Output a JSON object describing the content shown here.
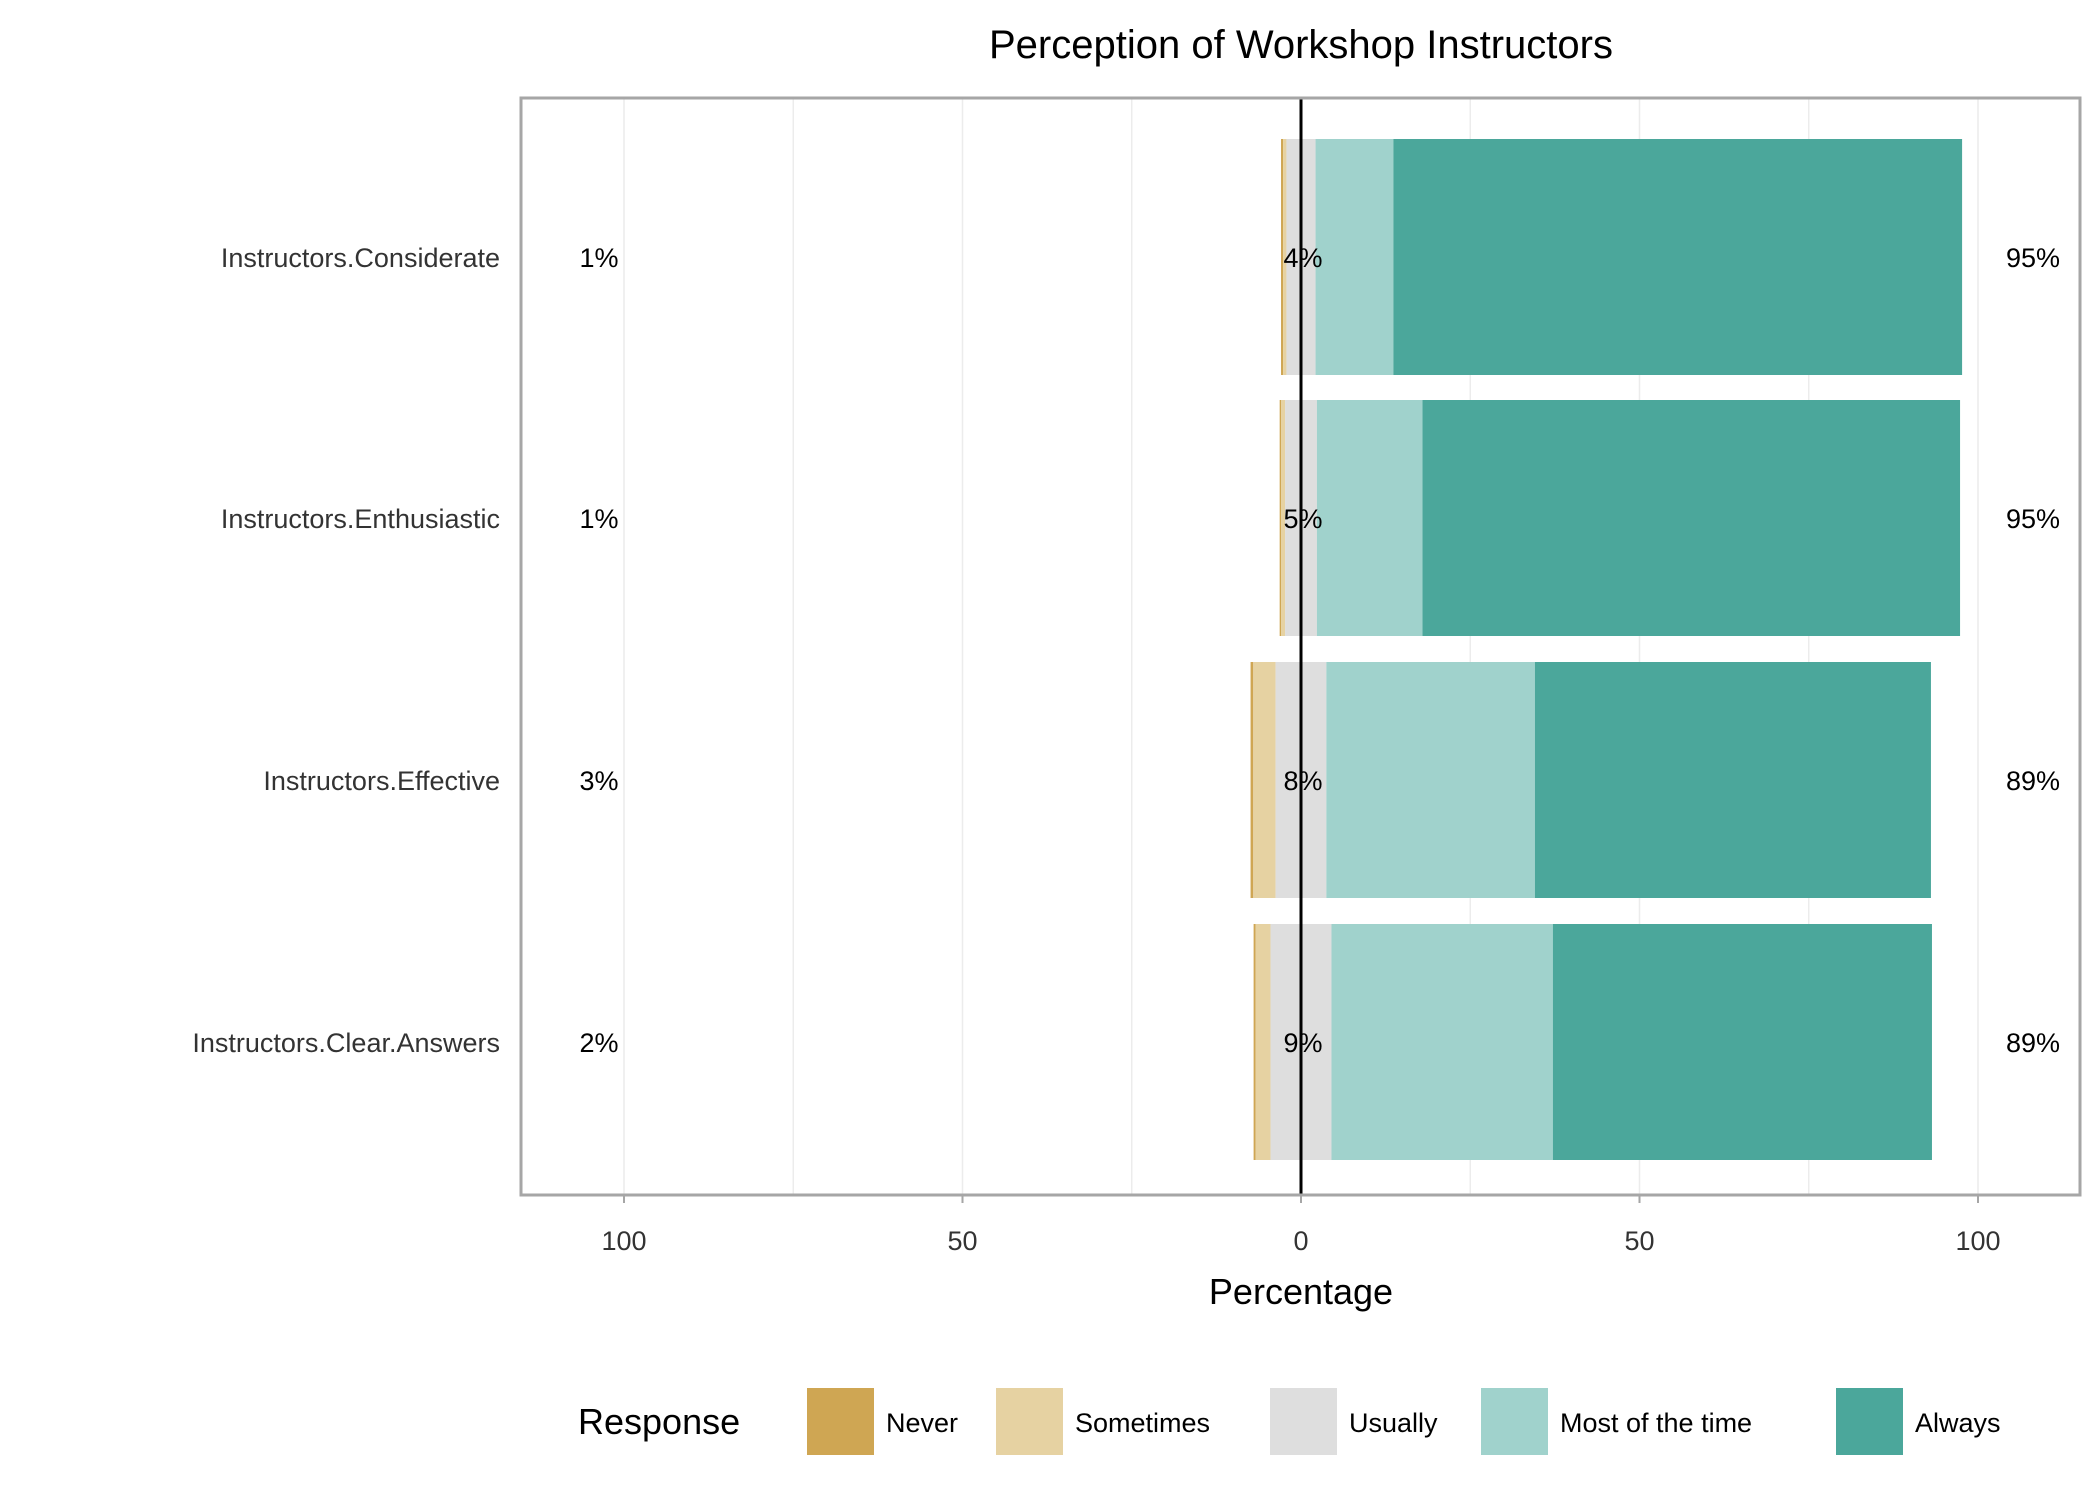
{
  "chart_data": {
    "type": "bar",
    "orientation": "horizontal",
    "stacked": "diverging",
    "title": "Perception of Workshop Instructors",
    "xlabel": "Percentage",
    "ylabel": "",
    "xlim": [
      -100,
      100
    ],
    "x_ticks": [
      {
        "value": -100,
        "label": "100"
      },
      {
        "value": -50,
        "label": "50"
      },
      {
        "value": 0,
        "label": "0"
      },
      {
        "value": 50,
        "label": "50"
      },
      {
        "value": 100,
        "label": "100"
      }
    ],
    "grid": true,
    "legend": {
      "title": "Response",
      "placement": "bottom"
    },
    "categories": [
      "Instructors.Considerate",
      "Instructors.Enthusiastic",
      "Instructors.Effective",
      "Instructors.Clear.Answers"
    ],
    "series": [
      {
        "name": "Never",
        "color": "#CFA653",
        "values": [
          0.3,
          0.2,
          0.4,
          0.3
        ]
      },
      {
        "name": "Sometimes",
        "color": "#E6D2A2",
        "values": [
          0.5,
          0.6,
          3.3,
          2.2
        ]
      },
      {
        "name": "Usually",
        "color": "#DEDEDE",
        "values": [
          4.3,
          4.7,
          7.5,
          9.0
        ]
      },
      {
        "name": "Most of the time",
        "color": "#A0D2CC",
        "values": [
          11.5,
          15.6,
          30.8,
          32.7
        ]
      },
      {
        "name": "Always",
        "color": "#4BA79B",
        "values": [
          84.0,
          79.4,
          58.5,
          56.0
        ]
      }
    ],
    "summary_labels": [
      {
        "low": "1%",
        "neutral": "4%",
        "high": "95%"
      },
      {
        "low": "1%",
        "neutral": "5%",
        "high": "95%"
      },
      {
        "low": "3%",
        "neutral": "8%",
        "high": "89%"
      },
      {
        "low": "2%",
        "neutral": "9%",
        "high": "89%"
      }
    ]
  }
}
